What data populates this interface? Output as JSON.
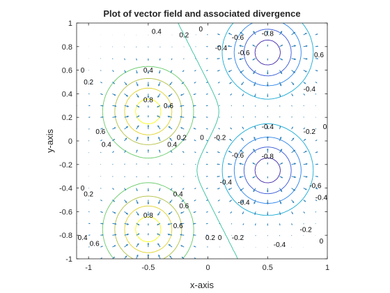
{
  "chart_data": {
    "type": "contour",
    "title": "Plot of vector field and associated divergence",
    "xlabel": "x-axis",
    "ylabel": "y-axis",
    "xlim": [
      -1.1,
      1.0
    ],
    "ylim": [
      -1.0,
      1.0
    ],
    "xticks": [
      -1,
      -0.5,
      0,
      0.5,
      1
    ],
    "xtick_labels": [
      "-1",
      "-0.5",
      "0",
      "0.5",
      "1"
    ],
    "yticks": [
      -1,
      -0.8,
      -0.6,
      -0.4,
      -0.2,
      0,
      0.2,
      0.4,
      0.6,
      0.8,
      1
    ],
    "ytick_labels": [
      "-1",
      "-0.8",
      "-0.6",
      "-0.4",
      "-0.2",
      "0",
      "0.2",
      "0.4",
      "0.6",
      "0.8",
      "1"
    ],
    "divergence_peaks": [
      {
        "x": -0.5,
        "y": 0.25,
        "value": 0.9
      },
      {
        "x": -0.5,
        "y": -0.75,
        "value": 0.9
      },
      {
        "x": 0.5,
        "y": 0.75,
        "value": -0.9
      },
      {
        "x": 0.5,
        "y": -0.25,
        "value": -0.9
      }
    ],
    "contour_levels": [
      -0.8,
      -0.6,
      -0.4,
      -0.2,
      0,
      0.2,
      0.4,
      0.6,
      0.8
    ],
    "contour_labels": [
      {
        "text": "0.4",
        "x": -0.43,
        "y": 0.93
      },
      {
        "text": "0.2",
        "x": -0.2,
        "y": 0.9
      },
      {
        "text": "0",
        "x": -0.06,
        "y": 0.95
      },
      {
        "text": "-0.4",
        "x": 0.11,
        "y": 0.79
      },
      {
        "text": "-0.6",
        "x": 0.25,
        "y": 0.88
      },
      {
        "text": "-0.6",
        "x": 0.3,
        "y": 0.75
      },
      {
        "text": "-0.8",
        "x": 0.5,
        "y": 0.91
      },
      {
        "text": "0.6",
        "x": 0.93,
        "y": 0.73
      },
      {
        "text": "-0.4",
        "x": 0.85,
        "y": 0.44
      },
      {
        "text": "0.4",
        "x": -0.5,
        "y": 0.6
      },
      {
        "text": "0",
        "x": -1.05,
        "y": 0.6
      },
      {
        "text": "0.2",
        "x": -1.0,
        "y": 0.5
      },
      {
        "text": "0.8",
        "x": -0.5,
        "y": 0.35
      },
      {
        "text": "0.6",
        "x": -0.33,
        "y": 0.3
      },
      {
        "text": "-0.4",
        "x": 0.5,
        "y": 0.12
      },
      {
        "text": "-0.2",
        "x": 0.85,
        "y": 0.08
      },
      {
        "text": "0",
        "x": 0.98,
        "y": 0.12
      },
      {
        "text": "0.6",
        "x": -0.9,
        "y": 0.08
      },
      {
        "text": "0.4",
        "x": -0.85,
        "y": -0.03
      },
      {
        "text": "0.4",
        "x": -0.3,
        "y": -0.03
      },
      {
        "text": "0.2",
        "x": -0.22,
        "y": 0.03
      },
      {
        "text": "0",
        "x": -0.05,
        "y": 0.03
      },
      {
        "text": "-0.2",
        "x": 0.1,
        "y": 0.03
      },
      {
        "text": "-0.6",
        "x": 0.25,
        "y": -0.12
      },
      {
        "text": "-0.8",
        "x": 0.5,
        "y": -0.13
      },
      {
        "text": "-0.4",
        "x": 0.15,
        "y": -0.35
      },
      {
        "text": "0",
        "x": -1.05,
        "y": -0.4
      },
      {
        "text": "0.2",
        "x": -1.0,
        "y": -0.45
      },
      {
        "text": "-0.6",
        "x": 0.9,
        "y": -0.38
      },
      {
        "text": "-0.4",
        "x": 0.95,
        "y": -0.48
      },
      {
        "text": "0.4",
        "x": -0.25,
        "y": -0.45
      },
      {
        "text": "0.6",
        "x": -0.2,
        "y": -0.55
      },
      {
        "text": "-0.4",
        "x": 0.3,
        "y": -0.52
      },
      {
        "text": "0.8",
        "x": -0.5,
        "y": -0.63
      },
      {
        "text": "0.6",
        "x": -0.25,
        "y": -0.72
      },
      {
        "text": "0.2",
        "x": 0.02,
        "y": -0.82
      },
      {
        "text": "0",
        "x": 0.1,
        "y": -0.82
      },
      {
        "text": "-0.2",
        "x": 0.25,
        "y": -0.82
      },
      {
        "text": "-0.2",
        "x": 0.82,
        "y": -0.75
      },
      {
        "text": "0",
        "x": 0.95,
        "y": -0.85
      },
      {
        "text": "0.4",
        "x": -1.05,
        "y": -0.82
      },
      {
        "text": "0.6",
        "x": -0.95,
        "y": -0.87
      },
      {
        "text": "-0.4",
        "x": 0.6,
        "y": -0.88
      }
    ],
    "grid": false,
    "legend": "none"
  }
}
